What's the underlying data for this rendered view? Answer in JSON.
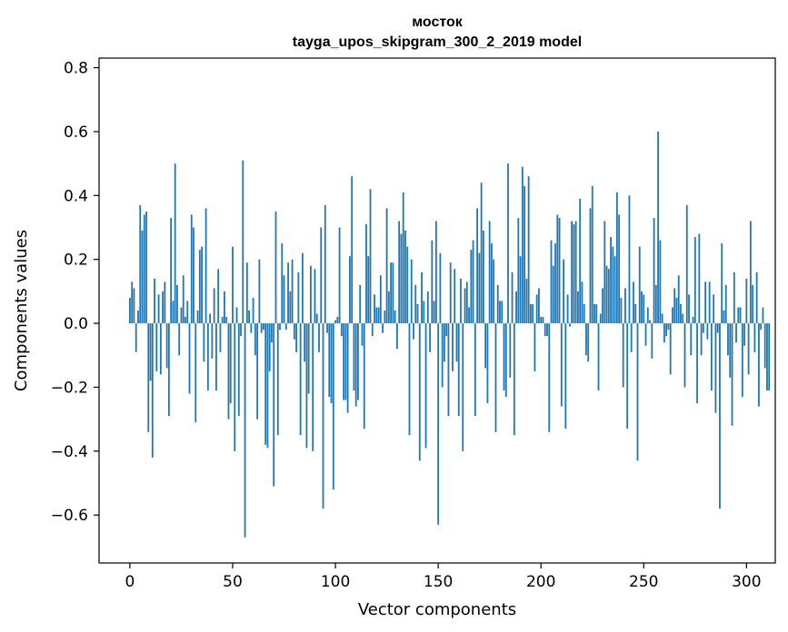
{
  "chart_data": {
    "type": "bar",
    "title": "мосток",
    "subtitle": "tayga_upos_skipgram_300_2_2019 model",
    "xlabel": "Vector components",
    "ylabel": "Components values",
    "xlim": [
      -15,
      314
    ],
    "ylim": [
      -0.75,
      0.83
    ],
    "xticks": [
      0,
      50,
      100,
      150,
      200,
      250,
      300
    ],
    "xtick_labels": [
      "0",
      "50",
      "100",
      "150",
      "200",
      "250",
      "300"
    ],
    "yticks": [
      -0.6,
      -0.4,
      -0.2,
      0.0,
      0.2,
      0.4,
      0.6,
      0.8
    ],
    "ytick_labels": [
      "−0.6",
      "−0.4",
      "−0.2",
      "0.0",
      "0.2",
      "0.4",
      "0.6",
      "0.8"
    ],
    "grid": false,
    "bar_color": "#1f77b4",
    "values": [
      0.08,
      0.13,
      0.11,
      -0.09,
      0.04,
      0.37,
      0.29,
      0.34,
      0.35,
      -0.34,
      -0.18,
      -0.42,
      0.14,
      -0.15,
      0.09,
      -0.16,
      0.1,
      0.13,
      -0.14,
      -0.29,
      0.33,
      0.07,
      0.5,
      0.12,
      -0.1,
      0.05,
      0.15,
      0.02,
      0.07,
      -0.22,
      0.34,
      0.3,
      -0.31,
      0.04,
      0.23,
      0.24,
      -0.12,
      0.36,
      -0.21,
      0.03,
      -0.11,
      0.11,
      -0.21,
      0.17,
      -0.09,
      0.02,
      0.1,
      0.02,
      -0.3,
      -0.25,
      0.24,
      -0.4,
      0.05,
      -0.29,
      -0.04,
      0.51,
      -0.67,
      0.19,
      0.04,
      -0.03,
      0.08,
      -0.1,
      -0.3,
      0.2,
      -0.03,
      -0.02,
      -0.38,
      -0.39,
      -0.15,
      -0.06,
      -0.51,
      0.35,
      -0.35,
      -0.02,
      0.25,
      0.15,
      -0.02,
      0.19,
      0.1,
      0.2,
      -0.05,
      -0.09,
      0.16,
      -0.35,
      0.22,
      -0.12,
      -0.39,
      -0.22,
      0.18,
      -0.4,
      0.17,
      0.03,
      -0.09,
      0.3,
      -0.58,
      0.37,
      -0.03,
      -0.23,
      -0.25,
      -0.52,
      0.01,
      0.02,
      0.3,
      -0.04,
      -0.24,
      -0.24,
      -0.28,
      0.21,
      0.46,
      -0.21,
      -0.26,
      -0.24,
      0.12,
      -0.07,
      -0.33,
      0.31,
      0.21,
      0.42,
      -0.04,
      0.09,
      0.05,
      0.05,
      0.15,
      -0.03,
      0.04,
      0.36,
      0.1,
      0.19,
      0.19,
      0.04,
      -0.08,
      0.32,
      0.28,
      0.41,
      0.29,
      0.24,
      -0.35,
      0.2,
      -0.05,
      0.12,
      0.06,
      -0.43,
      0.16,
      0.07,
      -0.39,
      0.1,
      -0.09,
      0.26,
      0.07,
      0.32,
      -0.63,
      0.22,
      -0.2,
      -0.12,
      -0.04,
      -0.29,
      0.19,
      -0.15,
      0.17,
      -0.12,
      -0.29,
      0.14,
      -0.4,
      0.11,
      0.13,
      0.05,
      0.23,
      0.26,
      -0.29,
      0.36,
      0.22,
      0.44,
      0.29,
      -0.14,
      -0.25,
      0.32,
      0.25,
      0.2,
      -0.34,
      0.12,
      0.07,
      0.07,
      -0.21,
      -0.23,
      0.5,
      -0.17,
      0.16,
      -0.35,
      0.1,
      0.33,
      0.21,
      0.49,
      0.43,
      0.14,
      0.46,
      0.06,
      0.06,
      -0.15,
      0.09,
      0.11,
      0.02,
      0.02,
      -0.04,
      -0.04,
      -0.34,
      0.26,
      0.18,
      0.25,
      0.34,
      0.33,
      -0.26,
      0.2,
      -0.33,
      0.09,
      -0.01,
      0.32,
      0.31,
      0.32,
      0.1,
      0.39,
      0.13,
      0.06,
      -0.1,
      -0.12,
      0.36,
      0.43,
      0.06,
      0.06,
      -0.21,
      0.03,
      0.11,
      0.32,
      0.18,
      0.17,
      0.27,
      0.24,
      0.21,
      0.41,
      0.34,
      0.08,
      -0.2,
      0.11,
      -0.33,
      0.4,
      -0.09,
      0.13,
      0.06,
      -0.43,
      0.24,
      0.1,
      0.09,
      -0.07,
      0.05,
      0.01,
      -0.11,
      0.33,
      0.12,
      0.6,
      0.26,
      0.03,
      -0.06,
      -0.04,
      -0.02,
      -0.16,
      0.05,
      0.11,
      0.08,
      0.15,
      0.06,
      0.03,
      -0.2,
      0.37,
      0.09,
      -0.1,
      0.02,
      0.27,
      -0.25,
      0.28,
      -0.1,
      -0.03,
      0.13,
      -0.05,
      0.13,
      -0.21,
      0.09,
      -0.28,
      -0.03,
      -0.58,
      0.25,
      0.04,
      0.12,
      -0.1,
      -0.17,
      -0.32,
      0.16,
      -0.06,
      0.05,
      0.05,
      -0.23,
      -0.07,
      0.14,
      -0.16,
      0.32,
      0.12,
      -0.09,
      0.16,
      -0.26,
      -0.02,
      0.05,
      -0.14,
      -0.21,
      -0.21
    ]
  }
}
